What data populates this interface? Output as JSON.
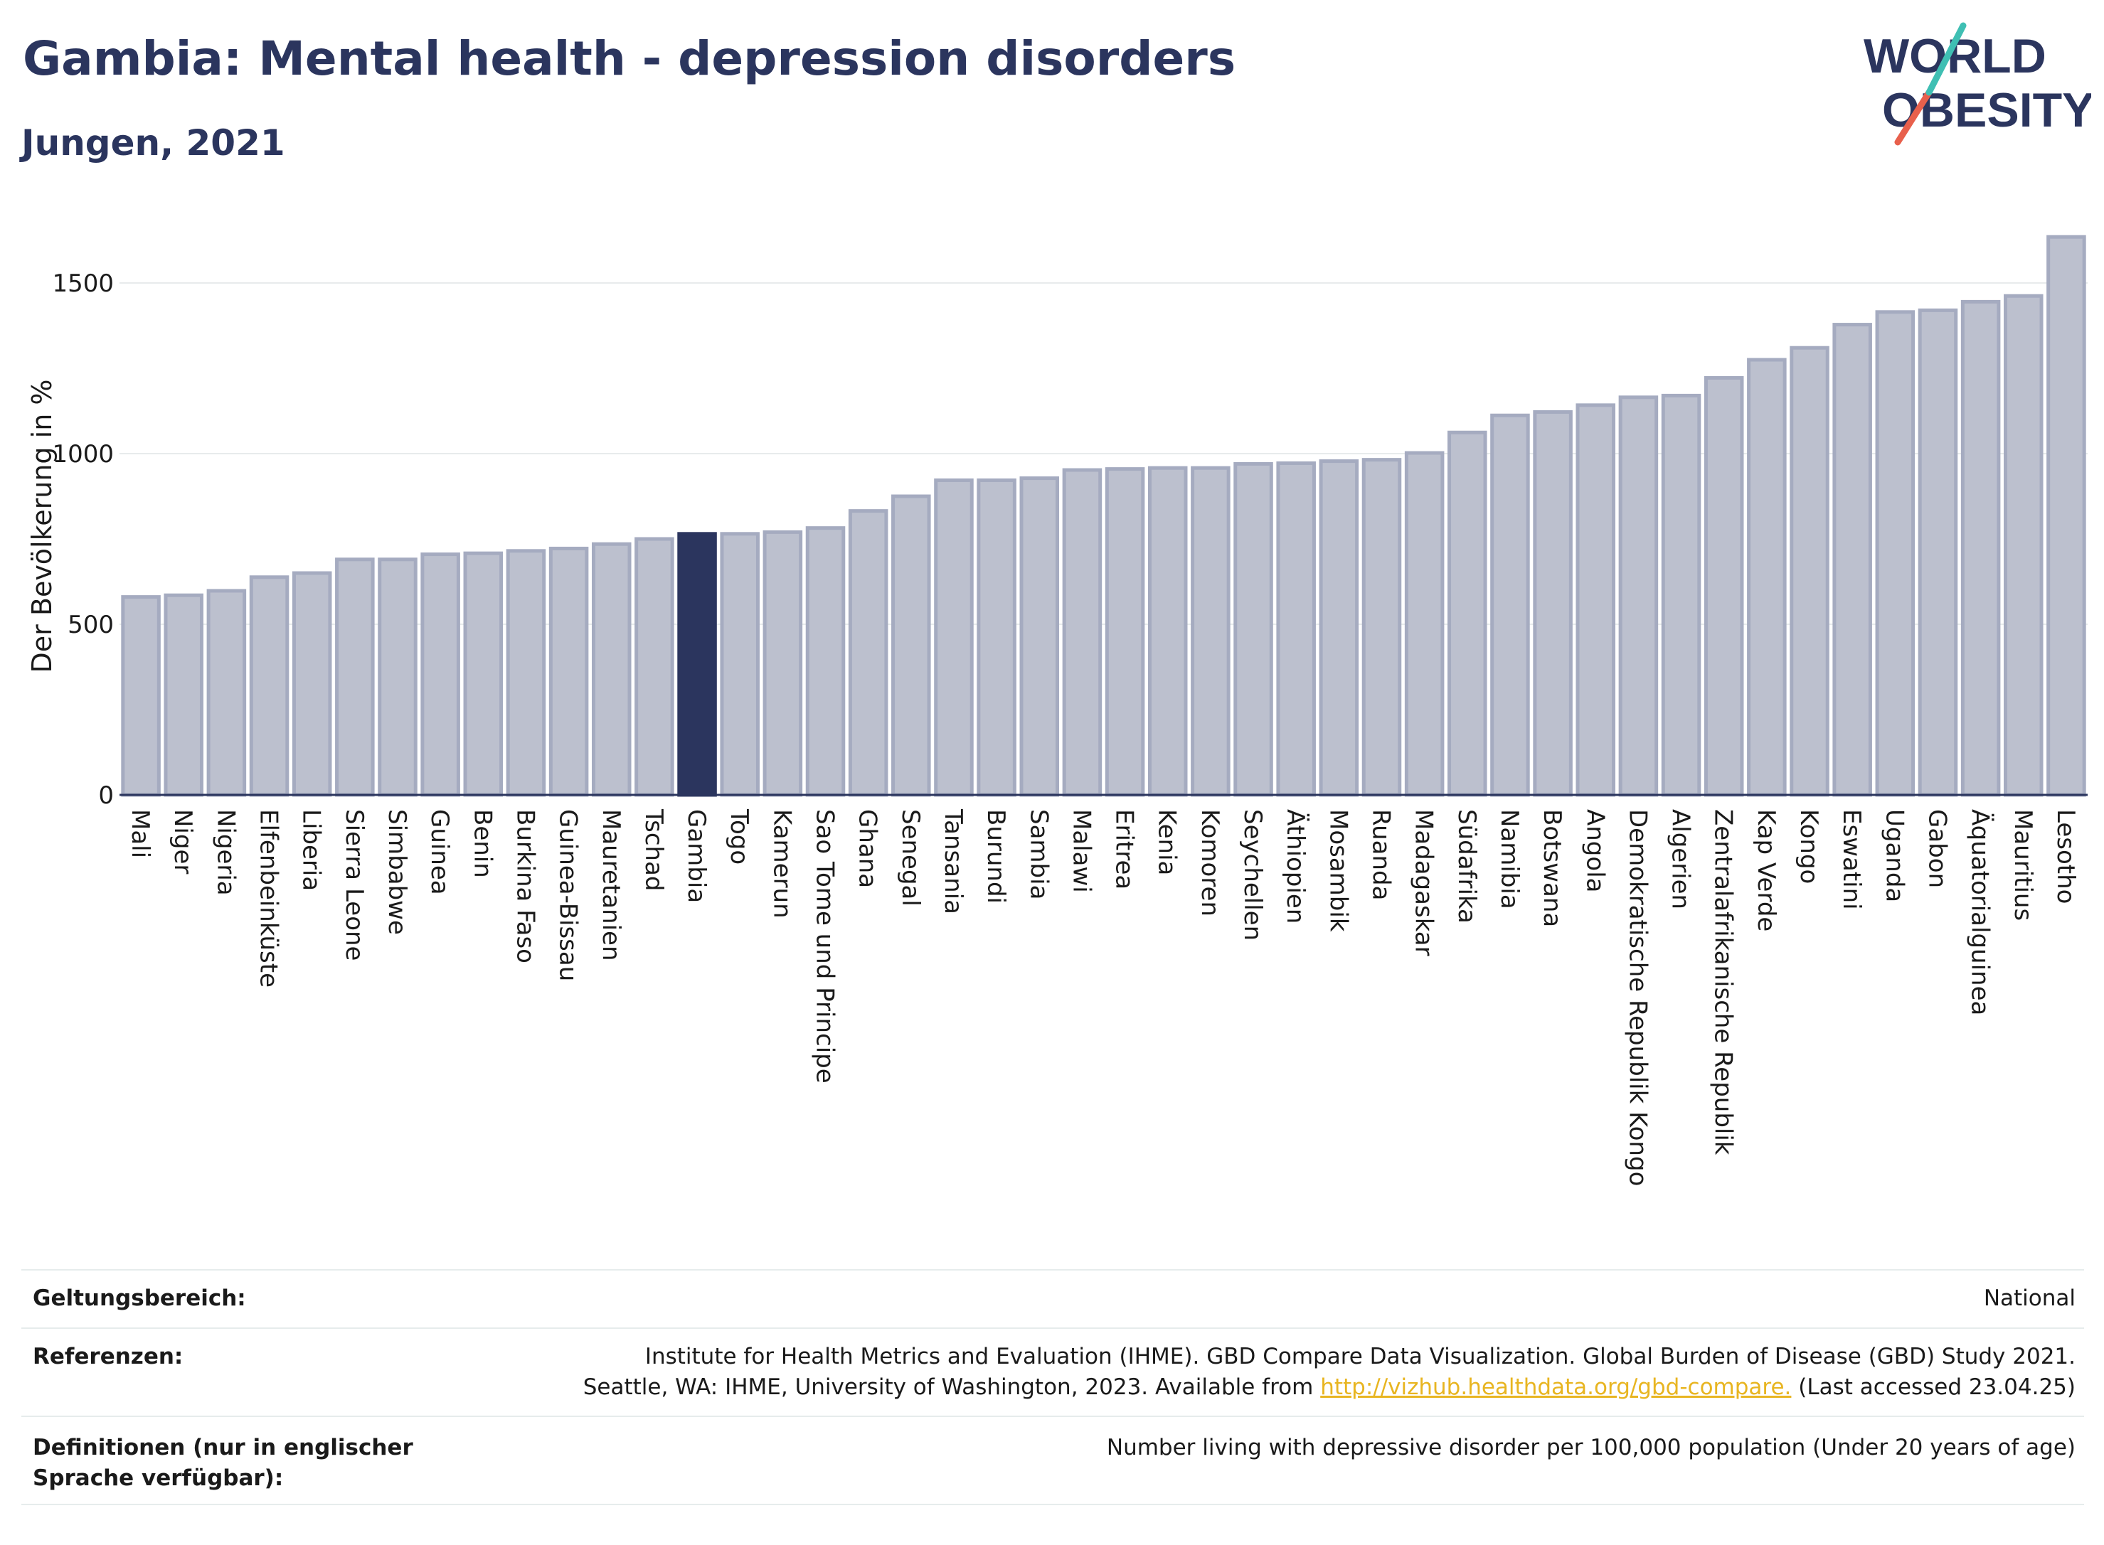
{
  "header": {
    "title": "Gambia: Mental health - depression disorders",
    "subtitle": "Jungen, 2021"
  },
  "logo": {
    "line1": "WORLD",
    "line2": "OBESITY"
  },
  "colors": {
    "bar": "#bcc0ce",
    "bar_border": "#a5abc0",
    "highlight": "#2b355e",
    "grid": "#e8ebec"
  },
  "chart_data": {
    "type": "bar",
    "ylabel": "Der Bevölkerung in %",
    "ylim": [
      0,
      1700
    ],
    "yticks": [
      0,
      500,
      1000,
      1500
    ],
    "highlight": "Gambia",
    "categories": [
      "Mali",
      "Niger",
      "Nigeria",
      "Elfenbeinküste",
      "Liberia",
      "Sierra Leone",
      "Simbabwe",
      "Guinea",
      "Benin",
      "Burkina Faso",
      "Guinea-Bissau",
      "Mauretanien",
      "Tschad",
      "Gambia",
      "Togo",
      "Kamerun",
      "Sao Tome und Principe",
      "Ghana",
      "Senegal",
      "Tansania",
      "Burundi",
      "Sambia",
      "Malawi",
      "Eritrea",
      "Kenia",
      "Komoren",
      "Seychellen",
      "Äthiopien",
      "Mosambik",
      "Ruanda",
      "Madagaskar",
      "Südafrika",
      "Namibia",
      "Botswana",
      "Angola",
      "Demokratische Republik Kongo",
      "Algerien",
      "Zentralafrikanische Republik",
      "Kap Verde",
      "Kongo",
      "Eswatini",
      "Uganda",
      "Gabon",
      "Äquatorialguinea",
      "Mauritius",
      "Lesotho"
    ],
    "values": [
      580,
      585,
      598,
      638,
      650,
      690,
      690,
      705,
      708,
      715,
      722,
      735,
      750,
      765,
      765,
      770,
      782,
      832,
      875,
      922,
      922,
      928,
      952,
      955,
      958,
      958,
      970,
      972,
      978,
      982,
      1002,
      1062,
      1112,
      1122,
      1142,
      1165,
      1170,
      1222,
      1275,
      1310,
      1378,
      1415,
      1420,
      1445,
      1462,
      1635
    ]
  },
  "info": {
    "scope_label": "Geltungsbereich:",
    "scope_value": "National",
    "refs_label": "Referenzen:",
    "refs_line1": "Institute for Health Metrics and Evaluation (IHME). GBD Compare Data Visualization. Global Burden of Disease (GBD) Study 2021.",
    "refs_line2_pre": "Seattle, WA: IHME, University of Washington, 2023. Available from ",
    "refs_link": "http://vizhub.healthdata.org/gbd-compare.",
    "refs_line2_post": " (Last accessed 23.04.25)",
    "def_label": "Definitionen (nur in englischer Sprache verfügbar):",
    "def_value": "Number living with depressive disorder per 100,000 population (Under 20 years of age)"
  }
}
